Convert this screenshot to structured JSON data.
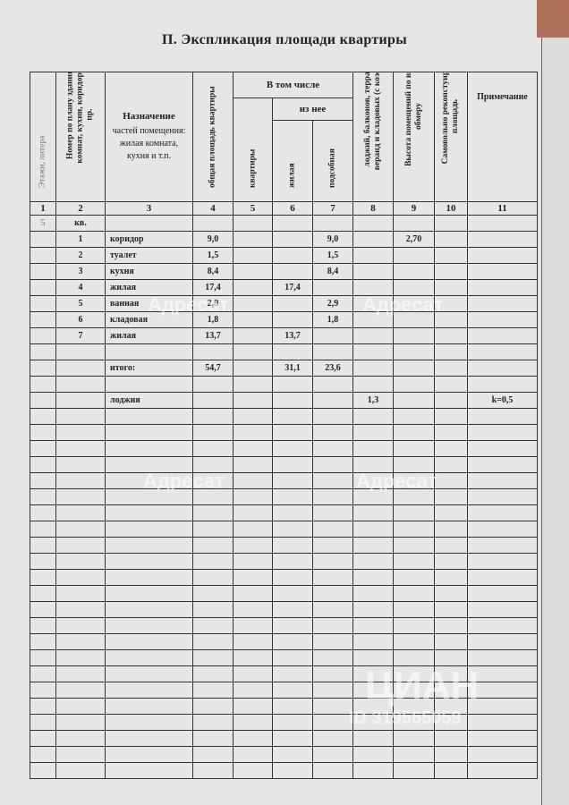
{
  "title": "П. Экспликация площади квартиры",
  "header": {
    "col1": "Этажи, литера",
    "col2": "Номер по плану здания комнат, кухни, коридор и пр.",
    "col3_title": "Назначение",
    "col3_sub": "частей помещения: жилая комната, кухня и т.п.",
    "col4": "общая площадь квартиры",
    "group": "В том числе",
    "col5": "квартиры",
    "subgroup": "из нее",
    "col6": "жилая",
    "col7": "подсобная",
    "col8": "лоджий, балконов, террас, веранд и кладовых (с коэф.)",
    "col9": "Высота помещений по вн. обмеру",
    "col10": "Самовольно реконстуир. площадь",
    "col11": "Примечание",
    "numbers": [
      "1",
      "2",
      "3",
      "4",
      "5",
      "6",
      "7",
      "8",
      "9",
      "10",
      "11"
    ]
  },
  "rows": [
    [
      "5",
      "кв.",
      "",
      "",
      "",
      "",
      "",
      "",
      "",
      "",
      ""
    ],
    [
      "",
      "1",
      "коридор",
      "9,0",
      "",
      "",
      "9,0",
      "",
      "2,70",
      "",
      ""
    ],
    [
      "",
      "2",
      "туалет",
      "1,5",
      "",
      "",
      "1,5",
      "",
      "",
      "",
      ""
    ],
    [
      "",
      "3",
      "кухня",
      "8,4",
      "",
      "",
      "8,4",
      "",
      "",
      "",
      ""
    ],
    [
      "",
      "4",
      "жилая",
      "17,4",
      "",
      "17,4",
      "",
      "",
      "",
      "",
      ""
    ],
    [
      "",
      "5",
      "ванная",
      "2,9",
      "",
      "",
      "2,9",
      "",
      "",
      "",
      ""
    ],
    [
      "",
      "6",
      "кладовая",
      "1,8",
      "",
      "",
      "1,8",
      "",
      "",
      "",
      ""
    ],
    [
      "",
      "7",
      "жилая",
      "13,7",
      "",
      "13,7",
      "",
      "",
      "",
      "",
      ""
    ],
    [
      "",
      "",
      "",
      "",
      "",
      "",
      "",
      "",
      "",
      "",
      ""
    ],
    [
      "",
      "",
      "итого:",
      "54,7",
      "",
      "31,1",
      "23,6",
      "",
      "",
      "",
      ""
    ],
    [
      "",
      "",
      "",
      "",
      "",
      "",
      "",
      "",
      "",
      "",
      ""
    ],
    [
      "",
      "",
      "лоджия",
      "",
      "",
      "",
      "",
      "1,3",
      "",
      "",
      "k=0,5"
    ]
  ],
  "watermarks": {
    "brand": "Адресат",
    "cian": "ЦИАН",
    "cian_id": "ID 319565059"
  }
}
